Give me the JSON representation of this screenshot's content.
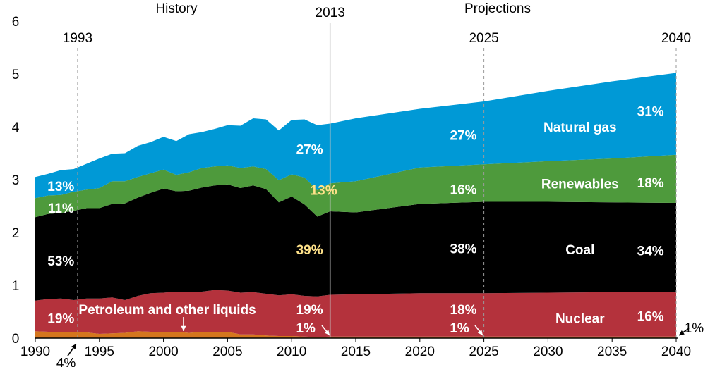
{
  "chart_data": {
    "type": "area",
    "stacked": true,
    "xlim": [
      1990,
      2040
    ],
    "ylim": [
      0,
      6
    ],
    "x_ticks": [
      "1990",
      "1995",
      "2000",
      "2005",
      "2010",
      "2015",
      "2020",
      "2025",
      "2030",
      "2035",
      "2040"
    ],
    "y_ticks": [
      "0",
      "1",
      "2",
      "3",
      "4",
      "5",
      "6"
    ],
    "headers": {
      "history": "History",
      "projections": "Projections"
    },
    "year_markers": [
      {
        "label": "1993",
        "x": 1993.3
      },
      {
        "label": "2013",
        "x": 2013
      },
      {
        "label": "2025",
        "x": 2025
      },
      {
        "label": "2040",
        "x": 2040
      }
    ],
    "x": [
      1990,
      1991,
      1992,
      1993,
      1994,
      1995,
      1996,
      1997,
      1998,
      1999,
      2000,
      2001,
      2002,
      2003,
      2004,
      2005,
      2006,
      2007,
      2008,
      2009,
      2010,
      2011,
      2012,
      2013,
      2015,
      2020,
      2025,
      2030,
      2035,
      2040
    ],
    "series": [
      {
        "name": "Petroleum and other liquids",
        "color": "#d4761e",
        "values": [
          0.13,
          0.12,
          0.11,
          0.11,
          0.11,
          0.08,
          0.09,
          0.1,
          0.13,
          0.12,
          0.11,
          0.12,
          0.1,
          0.12,
          0.12,
          0.12,
          0.07,
          0.07,
          0.05,
          0.04,
          0.04,
          0.03,
          0.02,
          0.03,
          0.03,
          0.03,
          0.03,
          0.03,
          0.03,
          0.03
        ]
      },
      {
        "name": "Nuclear",
        "color": "#b4323c",
        "values": [
          0.58,
          0.62,
          0.64,
          0.61,
          0.64,
          0.67,
          0.68,
          0.62,
          0.67,
          0.73,
          0.75,
          0.76,
          0.78,
          0.76,
          0.79,
          0.78,
          0.79,
          0.8,
          0.79,
          0.77,
          0.79,
          0.77,
          0.77,
          0.79,
          0.8,
          0.82,
          0.82,
          0.83,
          0.84,
          0.85
        ]
      },
      {
        "name": "Coal",
        "color": "#000000",
        "values": [
          1.58,
          1.61,
          1.62,
          1.69,
          1.71,
          1.71,
          1.77,
          1.83,
          1.86,
          1.9,
          1.97,
          1.9,
          1.91,
          1.97,
          1.98,
          2.01,
          1.98,
          2.02,
          1.98,
          1.76,
          1.85,
          1.73,
          1.51,
          1.58,
          1.55,
          1.69,
          1.73,
          1.72,
          1.7,
          1.68
        ]
      },
      {
        "name": "Renewables",
        "color": "#4e9a3c",
        "values": [
          0.36,
          0.35,
          0.34,
          0.36,
          0.35,
          0.38,
          0.43,
          0.42,
          0.39,
          0.37,
          0.36,
          0.31,
          0.35,
          0.37,
          0.36,
          0.36,
          0.38,
          0.36,
          0.38,
          0.42,
          0.42,
          0.51,
          0.5,
          0.53,
          0.59,
          0.69,
          0.71,
          0.77,
          0.83,
          0.91
        ]
      },
      {
        "name": "Natural gas",
        "color": "#0099d6",
        "values": [
          0.4,
          0.41,
          0.47,
          0.43,
          0.49,
          0.56,
          0.52,
          0.53,
          0.59,
          0.59,
          0.62,
          0.64,
          0.72,
          0.68,
          0.71,
          0.76,
          0.8,
          0.91,
          0.94,
          0.94,
          1.03,
          1.1,
          1.23,
          1.13,
          1.19,
          1.11,
          1.19,
          1.33,
          1.46,
          1.55
        ]
      }
    ],
    "series_labels": [
      {
        "text": "Natural gas",
        "x": 2032.5,
        "y": 4.0
      },
      {
        "text": "Renewables",
        "x": 2032.5,
        "y": 2.93
      },
      {
        "text": "Coal",
        "x": 2032.5,
        "y": 1.68
      },
      {
        "text": "Nuclear",
        "x": 2032.5,
        "y": 0.38
      },
      {
        "text": "Petroleum and other liquids",
        "x": 2000.3,
        "y": 0.55
      }
    ],
    "share_labels": [
      {
        "text": "13%",
        "x": 1992.0,
        "y": 2.88,
        "color": "#ffffff"
      },
      {
        "text": "11%",
        "x": 1992.0,
        "y": 2.47,
        "color": "#ffffff"
      },
      {
        "text": "53%",
        "x": 1992.0,
        "y": 1.47,
        "color": "#ffffff"
      },
      {
        "text": "19%",
        "x": 1992.0,
        "y": 0.38,
        "color": "#ffffff"
      },
      {
        "text": "27%",
        "x": 2011.4,
        "y": 3.58,
        "color": "#ffffff"
      },
      {
        "text": "13%",
        "x": 2012.5,
        "y": 2.81,
        "color": "#ffe28a"
      },
      {
        "text": "39%",
        "x": 2011.4,
        "y": 1.68,
        "color": "#ffe28a"
      },
      {
        "text": "19%",
        "x": 2011.4,
        "y": 0.55,
        "color": "#ffffff"
      },
      {
        "text": "1%",
        "x": 2011.1,
        "y": 0.2,
        "color": "#ffffff"
      },
      {
        "text": "27%",
        "x": 2023.4,
        "y": 3.85,
        "color": "#ffffff"
      },
      {
        "text": "16%",
        "x": 2023.4,
        "y": 2.82,
        "color": "#ffffff"
      },
      {
        "text": "38%",
        "x": 2023.4,
        "y": 1.7,
        "color": "#ffffff"
      },
      {
        "text": "18%",
        "x": 2023.4,
        "y": 0.55,
        "color": "#ffffff"
      },
      {
        "text": "1%",
        "x": 2023.1,
        "y": 0.2,
        "color": "#ffffff"
      },
      {
        "text": "31%",
        "x": 2038.0,
        "y": 4.3,
        "color": "#ffffff"
      },
      {
        "text": "18%",
        "x": 2038.0,
        "y": 2.95,
        "color": "#ffffff"
      },
      {
        "text": "34%",
        "x": 2038.0,
        "y": 1.66,
        "color": "#ffffff"
      },
      {
        "text": "16%",
        "x": 2038.0,
        "y": 0.42,
        "color": "#ffffff"
      }
    ],
    "outside_labels": [
      {
        "text": "4%",
        "x": 1992.4,
        "y": -0.46
      },
      {
        "text": "1%",
        "x": 2041.4,
        "y": 0.2
      }
    ]
  }
}
